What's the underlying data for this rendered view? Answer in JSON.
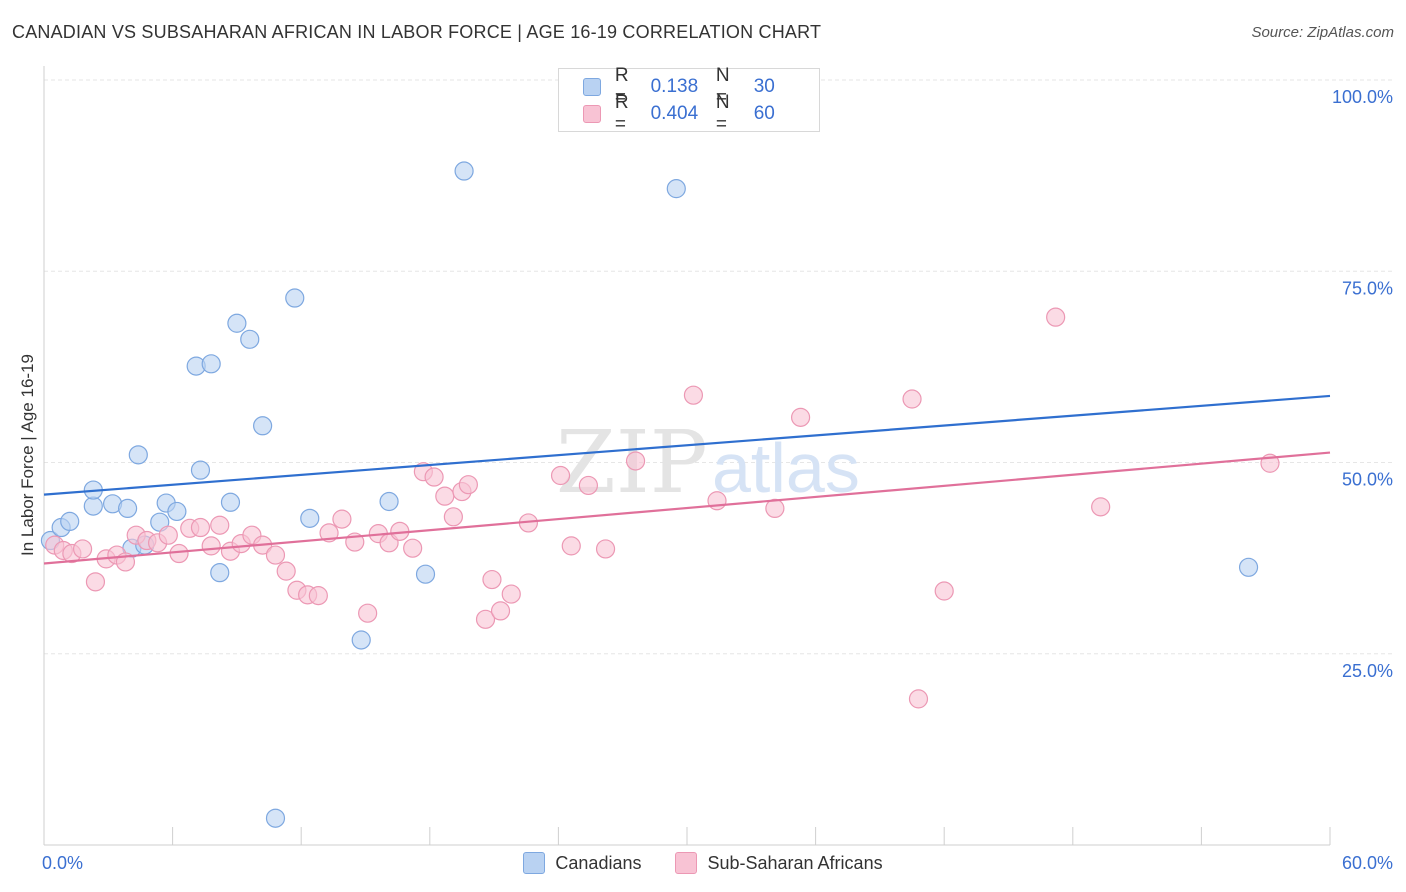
{
  "title": "CANADIAN VS SUBSAHARAN AFRICAN IN LABOR FORCE | AGE 16-19 CORRELATION CHART",
  "source": "Source: ZipAtlas.com",
  "watermark": {
    "zip": "ZIP",
    "atlas": "atlas"
  },
  "legend": {
    "r_label": "R =",
    "n_label": "N =",
    "rows": [
      {
        "r": "0.138",
        "n": "30"
      },
      {
        "r": "0.404",
        "n": "60"
      }
    ]
  },
  "chart_data": {
    "type": "scatter",
    "ylabel": "In Labor Force | Age 16-19",
    "xlim": [
      0,
      60
    ],
    "ylim": [
      0,
      100
    ],
    "x_tick_labels": [
      {
        "value": 0,
        "label": "0.0%"
      },
      {
        "value": 60,
        "label": "60.0%"
      }
    ],
    "y_tick_labels": [
      {
        "value": 100,
        "label": "100.0%"
      },
      {
        "value": 75,
        "label": "75.0%"
      },
      {
        "value": 50,
        "label": "50.0%"
      },
      {
        "value": 25,
        "label": "25.0%"
      }
    ],
    "colors": {
      "canadians_fill": "#b9d2f2",
      "canadians_stroke": "#7ea8e0",
      "canadians_line": "#2f6fcf",
      "africans_fill": "#f8c3d4",
      "africans_stroke": "#ec98b4",
      "africans_line": "#e0709a",
      "grid": "#e6e6e6",
      "tick_label": "#3a6fd1"
    },
    "grid": true,
    "series": [
      {
        "name": "Canadians",
        "trend": {
          "x": [
            0,
            60
          ],
          "y": [
            45.8,
            58.7
          ]
        },
        "points": [
          [
            0.3,
            39.8
          ],
          [
            0.8,
            41.5
          ],
          [
            1.2,
            42.3
          ],
          [
            2.3,
            44.3
          ],
          [
            2.3,
            46.4
          ],
          [
            3.2,
            44.6
          ],
          [
            3.9,
            44.0
          ],
          [
            4.1,
            38.8
          ],
          [
            4.4,
            51.0
          ],
          [
            4.7,
            39.2
          ],
          [
            5.4,
            42.2
          ],
          [
            5.7,
            44.7
          ],
          [
            6.2,
            43.6
          ],
          [
            7.1,
            62.6
          ],
          [
            7.3,
            49.0
          ],
          [
            7.8,
            62.9
          ],
          [
            8.2,
            35.6
          ],
          [
            8.7,
            44.8
          ],
          [
            9.0,
            68.2
          ],
          [
            9.6,
            66.1
          ],
          [
            10.2,
            54.8
          ],
          [
            10.8,
            3.5
          ],
          [
            11.7,
            71.5
          ],
          [
            12.4,
            42.7
          ],
          [
            14.8,
            26.8
          ],
          [
            16.1,
            44.9
          ],
          [
            17.8,
            35.4
          ],
          [
            19.6,
            88.1
          ],
          [
            29.5,
            85.8
          ],
          [
            56.2,
            36.3
          ]
        ]
      },
      {
        "name": "Sub-Saharan Africans",
        "trend": {
          "x": [
            0,
            60
          ],
          "y": [
            36.8,
            51.3
          ]
        },
        "points": [
          [
            0.5,
            39.2
          ],
          [
            0.9,
            38.5
          ],
          [
            1.3,
            38.1
          ],
          [
            1.8,
            38.7
          ],
          [
            2.4,
            34.4
          ],
          [
            2.9,
            37.4
          ],
          [
            3.4,
            37.9
          ],
          [
            3.8,
            37.0
          ],
          [
            4.3,
            40.5
          ],
          [
            4.8,
            39.8
          ],
          [
            5.3,
            39.5
          ],
          [
            5.8,
            40.5
          ],
          [
            6.3,
            38.1
          ],
          [
            6.8,
            41.4
          ],
          [
            7.3,
            41.5
          ],
          [
            7.8,
            39.1
          ],
          [
            8.2,
            41.8
          ],
          [
            8.7,
            38.4
          ],
          [
            9.2,
            39.4
          ],
          [
            9.7,
            40.5
          ],
          [
            10.2,
            39.2
          ],
          [
            10.8,
            37.9
          ],
          [
            11.3,
            35.8
          ],
          [
            11.8,
            33.3
          ],
          [
            12.3,
            32.7
          ],
          [
            12.8,
            32.6
          ],
          [
            13.3,
            40.8
          ],
          [
            13.9,
            42.6
          ],
          [
            14.5,
            39.6
          ],
          [
            15.1,
            30.3
          ],
          [
            15.6,
            40.7
          ],
          [
            16.1,
            39.5
          ],
          [
            16.6,
            41.0
          ],
          [
            17.2,
            38.8
          ],
          [
            17.7,
            48.8
          ],
          [
            18.2,
            48.1
          ],
          [
            18.7,
            45.6
          ],
          [
            19.1,
            42.9
          ],
          [
            19.5,
            46.2
          ],
          [
            19.8,
            47.1
          ],
          [
            20.6,
            29.5
          ],
          [
            20.9,
            34.7
          ],
          [
            21.3,
            30.6
          ],
          [
            21.8,
            32.8
          ],
          [
            22.6,
            42.1
          ],
          [
            24.1,
            48.3
          ],
          [
            24.6,
            39.1
          ],
          [
            25.4,
            47.0
          ],
          [
            26.2,
            38.7
          ],
          [
            27.6,
            50.2
          ],
          [
            30.3,
            58.8
          ],
          [
            31.4,
            45.0
          ],
          [
            34.1,
            44.0
          ],
          [
            35.3,
            55.9
          ],
          [
            40.5,
            58.3
          ],
          [
            40.8,
            19.1
          ],
          [
            42.0,
            33.2
          ],
          [
            47.2,
            69.0
          ],
          [
            49.3,
            44.2
          ],
          [
            57.2,
            49.9
          ]
        ]
      }
    ]
  },
  "bottom_legend": [
    "Canadians",
    "Sub-Saharan Africans"
  ]
}
